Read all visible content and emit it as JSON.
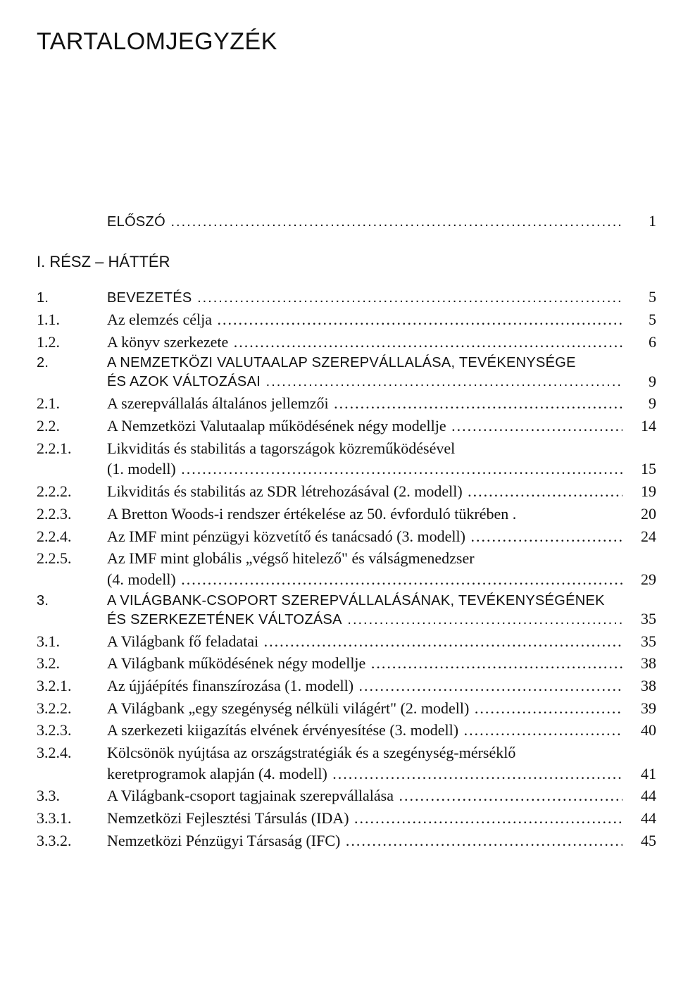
{
  "title": "TARTALOMJEGYZÉK",
  "preface": {
    "num": "",
    "label": "ELŐSZÓ",
    "page": "1"
  },
  "part1": {
    "label": "I. RÉSZ – HÁTTÉR"
  },
  "entries": [
    {
      "num": "1.",
      "text": "BEVEZETÉS",
      "page": "5",
      "caps": true,
      "gapBefore": false
    },
    {
      "num": "1.1.",
      "text": "Az elemzés célja",
      "page": "5"
    },
    {
      "num": "1.2.",
      "text": "A könyv szerkezete",
      "page": "6"
    },
    {
      "num": "2.",
      "lines": [
        "A NEMZETKÖZI VALUTAALAP SZEREPVÁLLALÁSA, TEVÉKENYSÉGE",
        "ÉS AZOK VÁLTOZÁSAI"
      ],
      "page": "9",
      "caps": true,
      "gapBefore": true
    },
    {
      "num": "2.1.",
      "text": "A szerepvállalás általános jellemzői",
      "page": "9"
    },
    {
      "num": "2.2.",
      "text": "A Nemzetközi Valutaalap működésének négy modellje",
      "page": "14"
    },
    {
      "num": "2.2.1.",
      "lines": [
        "Likviditás és stabilitás a tagországok közreműködésével",
        "(1. modell)"
      ],
      "page": "15"
    },
    {
      "num": "2.2.2.",
      "text": "Likviditás és stabilitás az SDR létrehozásával (2. modell)",
      "page": "19"
    },
    {
      "num": "2.2.3.",
      "text": "A Bretton Woods-i rendszer értékelése az 50. évforduló tükrében .",
      "page": "20",
      "noLeader": true
    },
    {
      "num": "2.2.4.",
      "text": "Az IMF mint pénzügyi közvetítő és tanácsadó (3. modell)",
      "page": "24"
    },
    {
      "num": "2.2.5.",
      "lines": [
        "Az IMF mint globális „végső hitelező\" és válságmenedzser",
        "(4. modell)"
      ],
      "page": "29"
    },
    {
      "num": "3.",
      "lines": [
        "A VILÁGBANK-CSOPORT SZEREPVÁLLALÁSÁNAK, TEVÉKENYSÉGÉNEK",
        "ÉS SZERKEZETÉNEK VÁLTOZÁSA"
      ],
      "page": "35",
      "caps": true,
      "gapBefore": true
    },
    {
      "num": "3.1.",
      "text": "A Világbank fő feladatai",
      "page": "35"
    },
    {
      "num": "3.2.",
      "text": "A Világbank működésének négy modellje",
      "page": "38"
    },
    {
      "num": "3.2.1.",
      "text": "Az újjáépítés finanszírozása (1. modell)",
      "page": "38"
    },
    {
      "num": "3.2.2.",
      "text": "A Világbank „egy szegénység nélküli világért\" (2. modell)",
      "page": "39"
    },
    {
      "num": "3.2.3.",
      "text": "A szerkezeti kiigazítás elvének érvényesítése (3. modell)",
      "page": "40"
    },
    {
      "num": "3.2.4.",
      "lines": [
        "Kölcsönök nyújtása az országstratégiák és a szegénység-mérséklő",
        "keretprogramok alapján (4. modell)"
      ],
      "page": "41"
    },
    {
      "num": "3.3.",
      "text": "A Világbank-csoport tagjainak szerepvállalása",
      "page": "44"
    },
    {
      "num": "3.3.1.",
      "text": "Nemzetközi Fejlesztési Társulás (IDA)",
      "page": "44"
    },
    {
      "num": "3.3.2.",
      "text": "Nemzetközi Pénzügyi Társaság (IFC)",
      "page": "45"
    }
  ]
}
